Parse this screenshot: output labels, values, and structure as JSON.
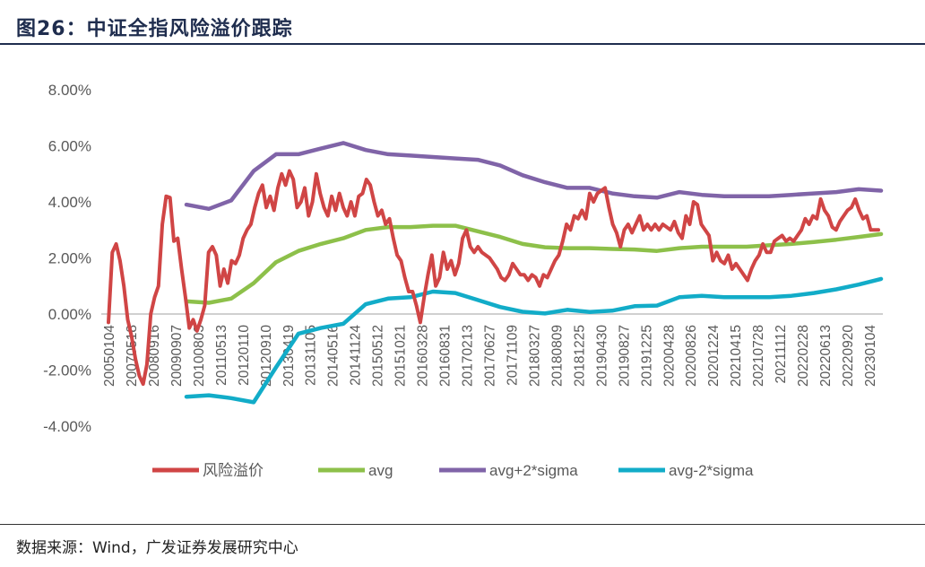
{
  "header": {
    "title": "图26：中证全指风险溢价跟踪"
  },
  "footer": {
    "source": "数据来源：Wind，广发证券发展研究中心"
  },
  "chart_data": {
    "type": "line",
    "title": "",
    "xlabel": "",
    "ylabel": "",
    "ylim": [
      -4,
      8
    ],
    "y_ticks": [
      "8.00%",
      "6.00%",
      "4.00%",
      "2.00%",
      "0.00%",
      "-2.00%",
      "-4.00%"
    ],
    "y_tick_values": [
      8,
      6,
      4,
      2,
      0,
      -2,
      -4
    ],
    "x_tick_labels": [
      "20050104",
      "20070518",
      "20080916",
      "20090907",
      "20100803",
      "20110513",
      "20120110",
      "20120910",
      "20130419",
      "20131105",
      "20140516",
      "20141124",
      "20150512",
      "20151021",
      "20160328",
      "20160831",
      "20170213",
      "20170627",
      "20171109",
      "20180327",
      "20180809",
      "20181225",
      "20190430",
      "20190827",
      "20191225",
      "20200428",
      "20200826",
      "20201224",
      "20210415",
      "20210728",
      "20211112",
      "20220228",
      "20220613",
      "20220920",
      "20230104"
    ],
    "grid": false,
    "legend_position": "bottom",
    "colors": {
      "风险溢价": "#d04545",
      "avg": "#8dc04a",
      "avg+2*sigma": "#8064a8",
      "avg-2*sigma": "#12acc8",
      "zero_line": "#d0d0d0"
    },
    "series": [
      {
        "name": "风险溢价",
        "range": "20050104 - 20230104 (end)",
        "values": [
          -0.3,
          2.2,
          2.5,
          1.9,
          1.0,
          -0.2,
          -0.8,
          -1.6,
          -2.2,
          -2.5,
          -1.8,
          0,
          0.6,
          1.0,
          3.2,
          4.2,
          4.15,
          2.6,
          2.7,
          1.6,
          0.6,
          -0.5,
          -0.2,
          -0.6,
          -0.2,
          0.3,
          2.2,
          2.4,
          2.1,
          1.0,
          1.6,
          1.1,
          1.9,
          1.8,
          2.1,
          2.7,
          3.0,
          3.2,
          3.8,
          4.3,
          4.6,
          3.8,
          4.2,
          3.7,
          4.5,
          5.0,
          4.6,
          5.1,
          4.8,
          3.8,
          4.0,
          4.5,
          3.5,
          4.0,
          5.0,
          4.3,
          3.8,
          3.5,
          4.2,
          3.7,
          4.3,
          3.8,
          3.5,
          4.0,
          3.5,
          4.2,
          4.3,
          4.8,
          4.6,
          4.0,
          3.5,
          3.7,
          3.2,
          3.4,
          2.7,
          2.1,
          1.9,
          1.3,
          0.8,
          0.8,
          0.3,
          -0.3,
          0.6,
          1.4,
          2.1,
          1.0,
          1.3,
          2.2,
          1.6,
          1.9,
          1.4,
          1.8,
          2.7,
          3.0,
          2.4,
          2.2,
          2.4,
          2.2,
          2.1,
          2.0,
          1.8,
          1.6,
          1.3,
          1.2,
          1.4,
          1.8,
          1.6,
          1.4,
          1.4,
          1.2,
          1.4,
          1.3,
          1.0,
          1.4,
          1.3,
          1.6,
          1.9,
          2.1,
          2.6,
          3.2,
          3.0,
          3.5,
          3.4,
          3.7,
          3.4,
          4.3,
          4.0,
          4.3,
          4.4,
          4.5,
          3.8,
          3.2,
          2.9,
          2.4,
          3.0,
          3.2,
          2.9,
          3.2,
          3.5,
          3.0,
          3.2,
          3.0,
          3.2,
          3.0,
          3.2,
          3.1,
          3.0,
          3.3,
          2.9,
          2.7,
          3.5,
          3.2,
          4.0,
          3.9,
          3.2,
          3.0,
          2.8,
          1.9,
          2.2,
          1.9,
          1.8,
          2.1,
          1.6,
          1.8,
          1.6,
          1.4,
          1.2,
          1.6,
          1.9,
          2.1,
          2.5,
          2.2,
          2.2,
          2.6,
          2.7,
          2.8,
          2.6,
          2.7,
          2.6,
          2.8,
          3.0,
          3.4,
          3.2,
          3.5,
          3.4,
          4.1,
          3.7,
          3.5,
          3.1,
          3.0,
          3.3,
          3.5,
          3.7,
          3.8,
          4.1,
          3.7,
          3.4,
          3.5,
          3.0,
          3.0,
          3.0
        ]
      },
      {
        "name": "avg",
        "values": [
          0.45,
          0.4,
          0.55,
          1.1,
          1.85,
          2.25,
          2.5,
          2.7,
          3.0,
          3.1,
          3.1,
          3.15,
          3.15,
          2.95,
          2.75,
          2.5,
          2.38,
          2.35,
          2.35,
          2.32,
          2.3,
          2.25,
          2.35,
          2.4,
          2.4,
          2.4,
          2.45,
          2.5,
          2.57,
          2.65,
          2.75,
          2.85
        ]
      },
      {
        "name": "avg+2*sigma",
        "values": [
          3.9,
          3.75,
          4.05,
          5.1,
          5.7,
          5.7,
          5.9,
          6.1,
          5.85,
          5.7,
          5.65,
          5.6,
          5.55,
          5.5,
          5.3,
          4.95,
          4.7,
          4.5,
          4.5,
          4.3,
          4.2,
          4.15,
          4.35,
          4.25,
          4.2,
          4.2,
          4.2,
          4.25,
          4.3,
          4.35,
          4.45,
          4.4
        ]
      },
      {
        "name": "avg-2*sigma",
        "values": [
          -2.95,
          -2.9,
          -3.0,
          -3.15,
          -1.9,
          -0.7,
          -0.5,
          -0.35,
          0.35,
          0.55,
          0.6,
          0.8,
          0.75,
          0.5,
          0.25,
          0.08,
          0.02,
          0.15,
          0.07,
          0.12,
          0.28,
          0.3,
          0.6,
          0.65,
          0.6,
          0.6,
          0.6,
          0.65,
          0.75,
          0.88,
          1.05,
          1.25
        ]
      }
    ]
  }
}
